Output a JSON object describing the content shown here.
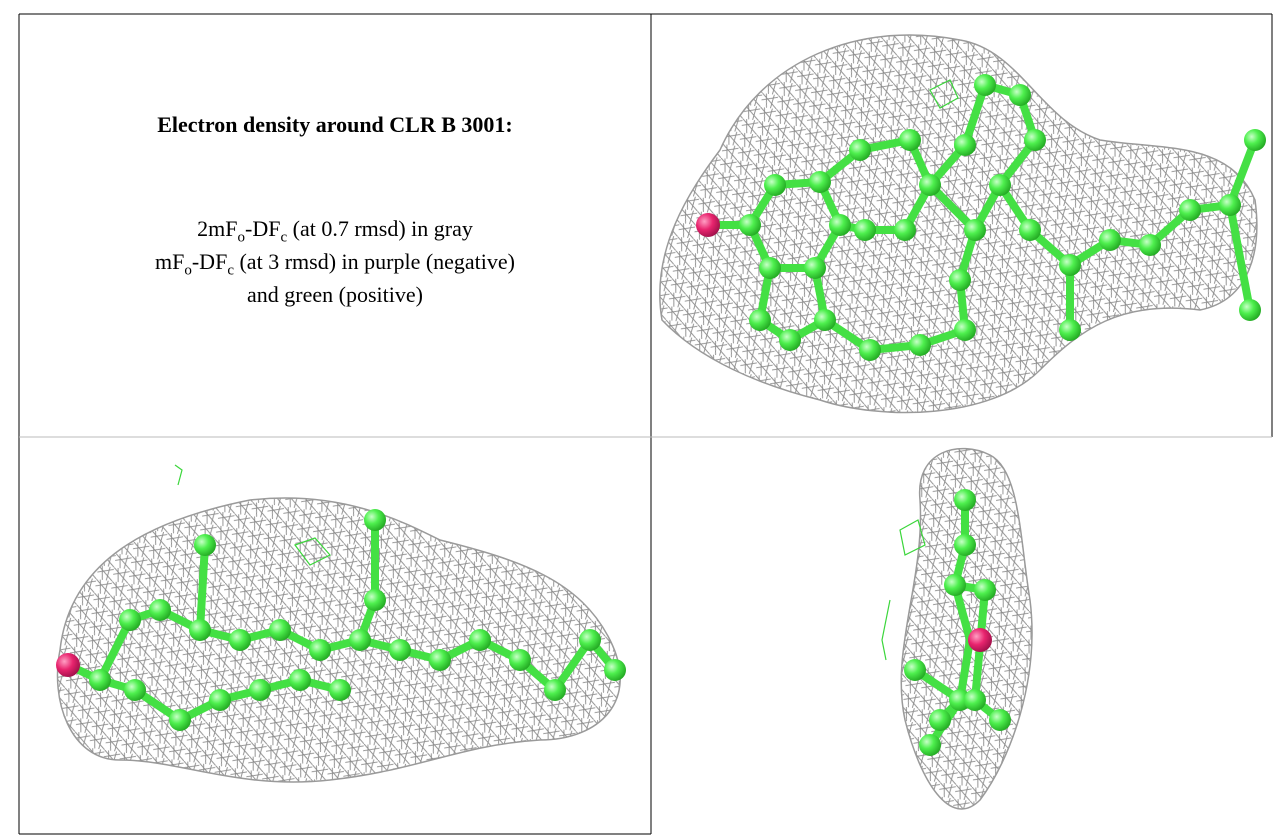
{
  "caption": {
    "title": "Electron density around CLR B 3001:",
    "lines": [
      [
        "2mF",
        "o",
        "-DF",
        "c",
        " (at 0.7 rmsd) in gray"
      ],
      [
        "mF",
        "o",
        "-DF",
        "c",
        " (at 3 rmsd) in purple (negative)"
      ],
      [
        "and green (positive)"
      ]
    ]
  }
}
